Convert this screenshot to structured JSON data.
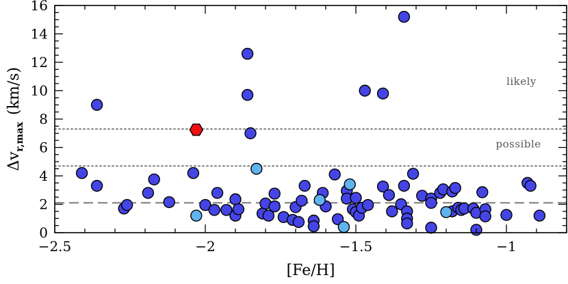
{
  "chart_data": {
    "type": "scatter",
    "xlabel": "[Fe/H]",
    "ylabel_main": "Δv",
    "ylabel_sub": "r,max",
    "ylabel_unit": "(km/s)",
    "xlim": [
      -2.5,
      -0.8
    ],
    "ylim": [
      0,
      16
    ],
    "x_ticks": [
      -2.5,
      -2,
      -1.5,
      -1
    ],
    "x_tick_labels": [
      "−2.5",
      "−2",
      "−1.5",
      "−1"
    ],
    "y_ticks": [
      0,
      2,
      4,
      6,
      8,
      10,
      12,
      14,
      16
    ],
    "y_tick_labels": [
      "0",
      "2",
      "4",
      "6",
      "8",
      "10",
      "12",
      "14",
      "16"
    ],
    "grid": false,
    "reference_lines": [
      {
        "style": "dotted",
        "y": 7.3
      },
      {
        "style": "dotted",
        "y": 4.7
      },
      {
        "style": "dashed",
        "y": 2.1
      }
    ],
    "annotations": [
      {
        "text": "likely",
        "x": -0.95,
        "y": 10.4
      },
      {
        "text": "possible",
        "x": -0.96,
        "y": 6.0
      }
    ],
    "colors": {
      "blue": "#4545e6",
      "light_blue": "#5fb4ee",
      "red": "#ee1111",
      "outline": "#000000",
      "refline": "#7a7a7a",
      "annotation": "#555555"
    },
    "series": [
      {
        "marker": "circle",
        "color": "#4545e6",
        "points": [
          [
            -2.41,
            4.2
          ],
          [
            -2.36,
            9.0
          ],
          [
            -2.36,
            3.3
          ],
          [
            -2.27,
            1.7
          ],
          [
            -2.26,
            1.95
          ],
          [
            -2.19,
            2.8
          ],
          [
            -2.17,
            3.75
          ],
          [
            -2.12,
            2.15
          ],
          [
            -2.04,
            4.2
          ],
          [
            -2.0,
            1.95
          ],
          [
            -1.96,
            2.8
          ],
          [
            -1.97,
            1.6
          ],
          [
            -1.93,
            1.6
          ],
          [
            -1.9,
            2.35
          ],
          [
            -1.9,
            1.2
          ],
          [
            -1.89,
            1.65
          ],
          [
            -1.86,
            12.6
          ],
          [
            -1.86,
            9.7
          ],
          [
            -1.85,
            7.0
          ],
          [
            -1.81,
            1.35
          ],
          [
            -1.8,
            2.05
          ],
          [
            -1.79,
            1.2
          ],
          [
            -1.77,
            2.75
          ],
          [
            -1.77,
            1.85
          ],
          [
            -1.74,
            1.1
          ],
          [
            -1.71,
            0.9
          ],
          [
            -1.7,
            1.8
          ],
          [
            -1.69,
            0.75
          ],
          [
            -1.68,
            2.25
          ],
          [
            -1.67,
            3.3
          ],
          [
            -1.64,
            0.85
          ],
          [
            -1.64,
            0.45
          ],
          [
            -1.61,
            2.8
          ],
          [
            -1.6,
            1.85
          ],
          [
            -1.57,
            4.1
          ],
          [
            -1.56,
            0.95
          ],
          [
            -1.53,
            2.95
          ],
          [
            -1.53,
            2.4
          ],
          [
            -1.51,
            1.65
          ],
          [
            -1.5,
            2.45
          ],
          [
            -1.5,
            1.45
          ],
          [
            -1.49,
            1.2
          ],
          [
            -1.48,
            1.75
          ],
          [
            -1.47,
            10.0
          ],
          [
            -1.46,
            1.95
          ],
          [
            -1.41,
            9.8
          ],
          [
            -1.41,
            3.25
          ],
          [
            -1.39,
            2.65
          ],
          [
            -1.38,
            1.5
          ],
          [
            -1.35,
            2.0
          ],
          [
            -1.34,
            15.2
          ],
          [
            -1.34,
            3.3
          ],
          [
            -1.33,
            1.5
          ],
          [
            -1.33,
            1.0
          ],
          [
            -1.33,
            0.65
          ],
          [
            -1.31,
            4.15
          ],
          [
            -1.28,
            2.6
          ],
          [
            -1.25,
            2.4
          ],
          [
            -1.25,
            2.1
          ],
          [
            -1.25,
            0.35
          ],
          [
            -1.22,
            2.8
          ],
          [
            -1.21,
            3.05
          ],
          [
            -1.18,
            2.9
          ],
          [
            -1.18,
            1.5
          ],
          [
            -1.17,
            3.15
          ],
          [
            -1.16,
            1.75
          ],
          [
            -1.15,
            1.6
          ],
          [
            -1.14,
            1.7
          ],
          [
            -1.11,
            1.7
          ],
          [
            -1.1,
            1.4
          ],
          [
            -1.1,
            0.2
          ],
          [
            -1.08,
            2.85
          ],
          [
            -1.07,
            1.65
          ],
          [
            -1.07,
            1.15
          ],
          [
            -1.0,
            1.25
          ],
          [
            -0.93,
            3.5
          ],
          [
            -0.92,
            3.3
          ],
          [
            -0.89,
            1.2
          ]
        ]
      },
      {
        "marker": "circle",
        "color": "#5fb4ee",
        "points": [
          [
            -2.03,
            1.2
          ],
          [
            -1.83,
            4.5
          ],
          [
            -1.62,
            2.3
          ],
          [
            -1.52,
            3.4
          ],
          [
            -1.54,
            0.4
          ],
          [
            -1.2,
            1.45
          ]
        ]
      },
      {
        "marker": "hexagon",
        "color": "#ee1111",
        "points": [
          [
            -2.03,
            7.25
          ]
        ]
      }
    ]
  }
}
